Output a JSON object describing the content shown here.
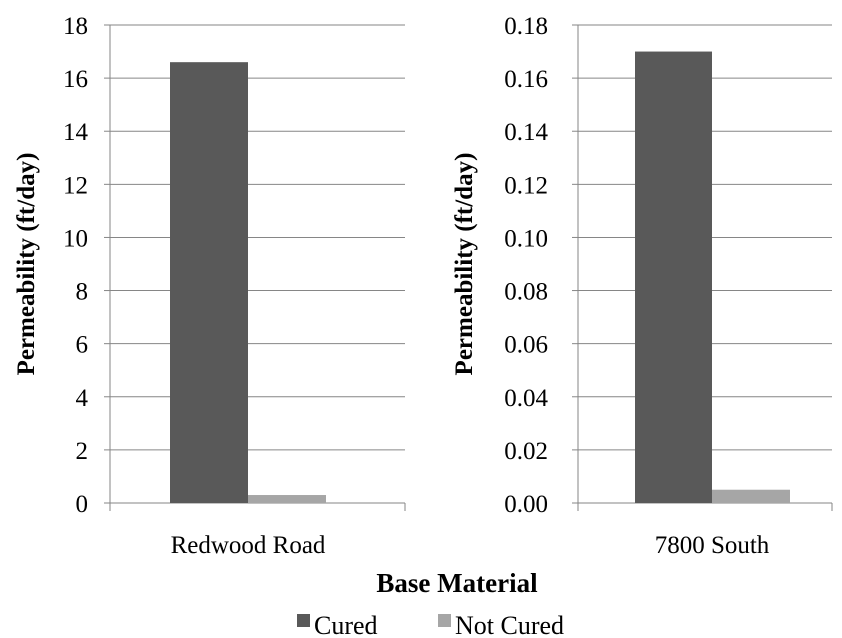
{
  "colors": {
    "cured": "#595959",
    "not_cured": "#a6a6a6",
    "grid": "#868686",
    "axis": "#868686"
  },
  "x_title": "Base Material",
  "legend": [
    {
      "label": "Cured",
      "color": "#595959"
    },
    {
      "label": "Not Cured",
      "color": "#a6a6a6"
    }
  ],
  "chart_data": [
    {
      "type": "bar",
      "categories": [
        "Redwood Road"
      ],
      "series": [
        {
          "name": "Cured",
          "values": [
            16.6
          ]
        },
        {
          "name": "Not Cured",
          "values": [
            0.3
          ]
        }
      ],
      "ylabel": "Permeability (ft/day)",
      "ylim": [
        0,
        18
      ],
      "yticks": [
        "0",
        "2",
        "4",
        "6",
        "8",
        "10",
        "12",
        "14",
        "16",
        "18"
      ],
      "grid": true
    },
    {
      "type": "bar",
      "categories": [
        "7800 South"
      ],
      "series": [
        {
          "name": "Cured",
          "values": [
            0.17
          ]
        },
        {
          "name": "Not Cured",
          "values": [
            0.005
          ]
        }
      ],
      "ylabel": "Permeability (ft/day)",
      "ylim": [
        0,
        0.18
      ],
      "yticks": [
        "0.00",
        "0.02",
        "0.04",
        "0.06",
        "0.08",
        "0.10",
        "0.12",
        "0.14",
        "0.16",
        "0.18"
      ],
      "grid": true
    }
  ]
}
